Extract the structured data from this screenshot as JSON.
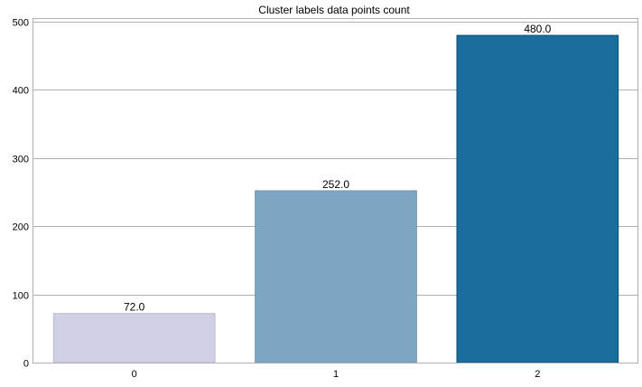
{
  "chart_data": {
    "type": "bar",
    "title": "Cluster labels data points count",
    "xlabel": "",
    "ylabel": "",
    "categories": [
      "0",
      "1",
      "2"
    ],
    "values": [
      72,
      252,
      480
    ],
    "data_labels": [
      "72.0",
      "252.0",
      "480.0"
    ],
    "colors": [
      "#d0d1e6",
      "#7ea6c3",
      "#1b6d9c"
    ],
    "edge_colors": [
      "#b8b9cc",
      "#6e92ad",
      "#0b4f78"
    ],
    "ylim": [
      0,
      504
    ],
    "yticks": [
      0,
      100,
      200,
      300,
      400,
      500
    ],
    "grid": true,
    "legend": "none"
  }
}
